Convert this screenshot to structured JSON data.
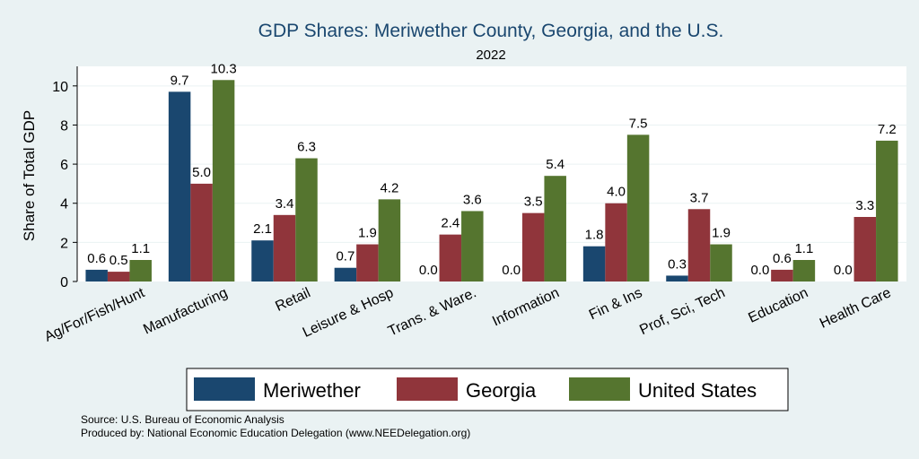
{
  "chart_data": {
    "type": "bar",
    "title": "GDP Shares: Meriwether County, Georgia, and the U.S.",
    "subtitle": "2022",
    "xlabel": "",
    "ylabel": "Share of Total GDP",
    "ylim": [
      0,
      11
    ],
    "yticks": [
      0,
      2,
      4,
      6,
      8,
      10
    ],
    "grid": true,
    "legend_position": "bottom",
    "categories": [
      "Ag/For/Fish/Hunt",
      "Manufacturing",
      "Retail",
      "Leisure & Hosp",
      "Trans. & Ware.",
      "Information",
      "Fin & Ins",
      "Prof, Sci, Tech",
      "Education",
      "Health Care"
    ],
    "series": [
      {
        "name": "Meriwether",
        "color": "#1a476f",
        "values": [
          0.6,
          9.7,
          2.1,
          0.7,
          0.0,
          0.0,
          1.8,
          0.3,
          0.0,
          0.0
        ],
        "labels": [
          "0.6",
          "9.7",
          "2.1",
          "0.7",
          "0.0",
          "0.0",
          "1.8",
          "0.3",
          "0.0",
          "0.0"
        ]
      },
      {
        "name": "Georgia",
        "color": "#90353b",
        "values": [
          0.5,
          5.0,
          3.4,
          1.9,
          2.4,
          3.5,
          4.0,
          3.7,
          0.6,
          3.3
        ],
        "labels": [
          "0.5",
          "5.0",
          "3.4",
          "1.9",
          "2.4",
          "3.5",
          "4.0",
          "3.7",
          "0.6",
          "3.3"
        ]
      },
      {
        "name": "United States",
        "color": "#55752f",
        "values": [
          1.1,
          10.3,
          6.3,
          4.2,
          3.6,
          5.4,
          7.5,
          1.9,
          1.1,
          7.2
        ],
        "labels": [
          "1.1",
          "10.3",
          "6.3",
          "4.2",
          "3.6",
          "5.4",
          "7.5",
          "1.9",
          "1.1",
          "7.2"
        ]
      }
    ],
    "notes": [
      "Source: U.S. Bureau of Economic Analysis",
      "Produced by: National Economic Education Delegation (www.NEEDelegation.org)"
    ]
  }
}
